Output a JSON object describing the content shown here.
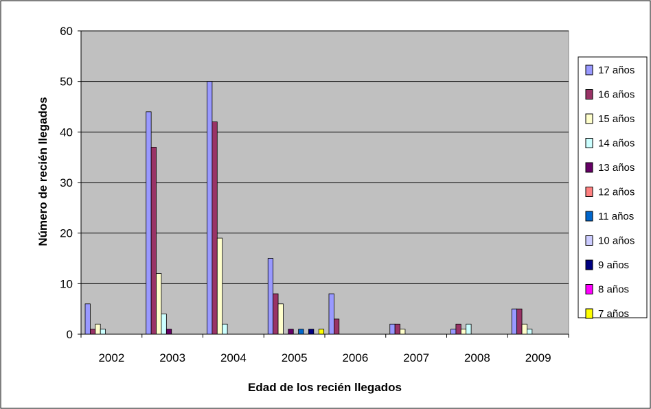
{
  "chart_data": {
    "type": "bar",
    "xlabel": "Edad de los recién llegados",
    "ylabel": "Número de recién llegados",
    "ylim": [
      0,
      60
    ],
    "yticks": [
      0,
      10,
      20,
      30,
      40,
      50,
      60
    ],
    "grid": true,
    "legend_position": "right",
    "plot_background": "#c0c0c0",
    "categories": [
      "2002",
      "2003",
      "2004",
      "2005",
      "2006",
      "2007",
      "2008",
      "2009"
    ],
    "series": [
      {
        "name": "17 años",
        "color": "#9999ff",
        "values": [
          6,
          44,
          50,
          15,
          8,
          2,
          1,
          5
        ]
      },
      {
        "name": "16 años",
        "color": "#993366",
        "values": [
          1,
          37,
          42,
          8,
          3,
          2,
          2,
          5
        ]
      },
      {
        "name": "15 años",
        "color": "#ffffcc",
        "values": [
          2,
          12,
          19,
          6,
          0,
          1,
          1,
          2
        ]
      },
      {
        "name": "14 años",
        "color": "#ccffff",
        "values": [
          1,
          4,
          2,
          0,
          0,
          0,
          2,
          1
        ]
      },
      {
        "name": "13 años",
        "color": "#660066",
        "values": [
          0,
          1,
          0,
          1,
          0,
          0,
          0,
          0
        ]
      },
      {
        "name": "12 años",
        "color": "#ff8080",
        "values": [
          0,
          0,
          0,
          0,
          0,
          0,
          0,
          0
        ]
      },
      {
        "name": "11 años",
        "color": "#0066cc",
        "values": [
          0,
          0,
          0,
          1,
          0,
          0,
          0,
          0
        ]
      },
      {
        "name": "10 años",
        "color": "#ccccff",
        "values": [
          0,
          0,
          0,
          0,
          0,
          0,
          0,
          0
        ]
      },
      {
        "name": "9 años",
        "color": "#000080",
        "values": [
          0,
          0,
          0,
          1,
          0,
          0,
          0,
          0
        ]
      },
      {
        "name": "8 años",
        "color": "#ff00ff",
        "values": [
          0,
          0,
          0,
          0,
          0,
          0,
          0,
          0
        ]
      },
      {
        "name": "7 años",
        "color": "#ffff00",
        "values": [
          0,
          0,
          0,
          1,
          0,
          0,
          0,
          0
        ]
      }
    ]
  }
}
